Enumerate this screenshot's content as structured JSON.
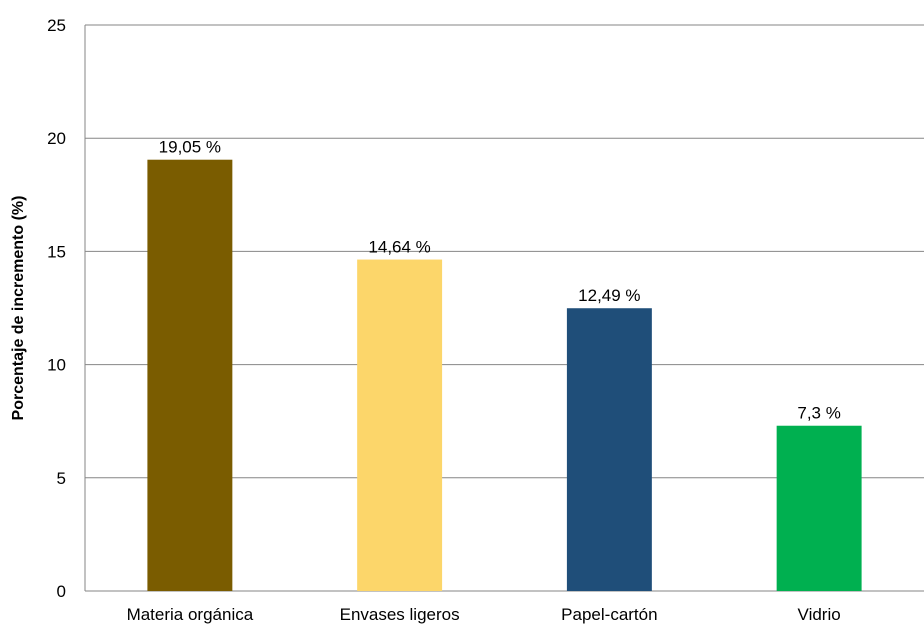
{
  "chart_data": {
    "type": "bar",
    "title": "",
    "xlabel": "",
    "ylabel": "Porcentaje de incremento (%)",
    "ylim": [
      0,
      25
    ],
    "yticks": [
      0,
      5,
      10,
      15,
      20,
      25
    ],
    "grid": true,
    "legend": "none",
    "categories": [
      "Materia orgánica",
      "Envases ligeros",
      "Papel-cartón",
      "Vidrio"
    ],
    "values": [
      19.05,
      14.64,
      12.49,
      7.3
    ],
    "data_labels": [
      "19,05 %",
      "14,64 %",
      "12,49 %",
      "7,3 %"
    ],
    "colors": [
      "#7a5c00",
      "#fcd66a",
      "#1f4e79",
      "#00b050"
    ]
  }
}
